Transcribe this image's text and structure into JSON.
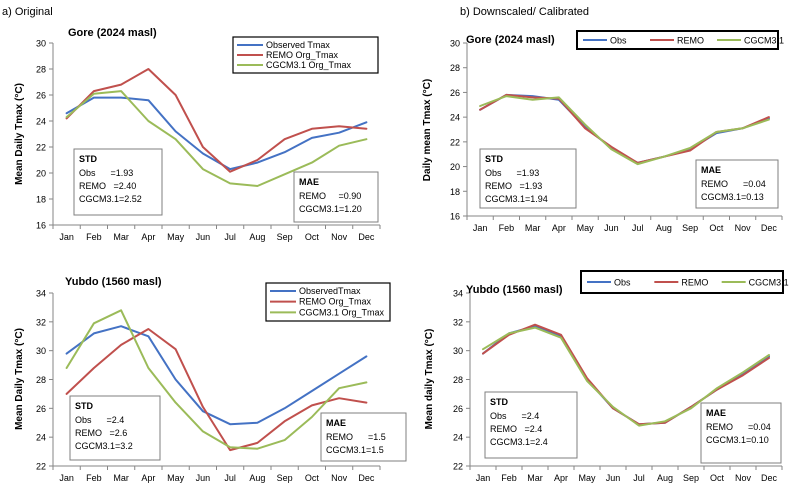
{
  "panel_labels": {
    "left": "a) Original",
    "right": "b) Downscaled/ Calibrated"
  },
  "colors": {
    "obs": "#4472C4",
    "remo": "#C0504D",
    "cgcm": "#9BBB59"
  },
  "chart_data": [
    {
      "type": "line",
      "title": "Gore (2024 masl)",
      "ylabel": "Mean Daily Tmax (°C)",
      "ylim": [
        16,
        30
      ],
      "yticks": [
        16,
        18,
        20,
        22,
        24,
        26,
        28,
        30
      ],
      "categories": [
        "Jan",
        "Feb",
        "Mar",
        "Apr",
        "May",
        "Jun",
        "Jul",
        "Aug",
        "Sep",
        "Oct",
        "Nov",
        "Dec"
      ],
      "legend_position": "top-right",
      "series": [
        {
          "name": "Observed Tmax",
          "color": "#4472C4",
          "values": [
            24.6,
            25.8,
            25.8,
            25.6,
            23.2,
            21.5,
            20.3,
            20.8,
            21.6,
            22.7,
            23.1,
            23.9
          ]
        },
        {
          "name": "REMO Org_Tmax",
          "color": "#C0504D",
          "values": [
            24.2,
            26.3,
            26.8,
            28.0,
            26.0,
            22.0,
            20.1,
            21.0,
            22.6,
            23.4,
            23.6,
            23.4
          ]
        },
        {
          "name": "CGCM3.1 Org_Tmax",
          "color": "#9BBB59",
          "values": [
            24.3,
            26.1,
            26.3,
            24.0,
            22.6,
            20.3,
            19.2,
            19.0,
            19.9,
            20.8,
            22.1,
            22.6
          ]
        }
      ],
      "boxes": [
        {
          "position": "bottom-left",
          "title": "STD",
          "lines": [
            "Obs      =1.93",
            "REMO   =2.40",
            "CGCM3.1=2.52"
          ]
        },
        {
          "position": "bottom-right",
          "title": "MAE",
          "lines": [
            "REMO     =0.90",
            "CGCM3.1=1.20"
          ]
        }
      ]
    },
    {
      "type": "line",
      "title": "Gore (2024 masl)",
      "ylabel": "Daily mean Tmax (°C)",
      "ylim": [
        16,
        30
      ],
      "yticks": [
        16,
        18,
        20,
        22,
        24,
        26,
        28,
        30
      ],
      "categories": [
        "Jan",
        "Feb",
        "Mar",
        "Apr",
        "May",
        "Jun",
        "Jul",
        "Aug",
        "Sep",
        "Oct",
        "Nov",
        "Dec"
      ],
      "legend_position": "top",
      "series": [
        {
          "name": "Obs",
          "color": "#4472C4",
          "values": [
            24.6,
            25.8,
            25.7,
            25.4,
            23.2,
            21.5,
            20.3,
            20.8,
            21.4,
            22.7,
            23.1,
            23.9
          ]
        },
        {
          "name": "REMO",
          "color": "#C0504D",
          "values": [
            24.6,
            25.8,
            25.6,
            25.5,
            23.1,
            21.6,
            20.3,
            20.8,
            21.3,
            22.8,
            23.1,
            24.0
          ]
        },
        {
          "name": "CGCM3.1",
          "color": "#9BBB59",
          "values": [
            24.9,
            25.7,
            25.4,
            25.6,
            23.4,
            21.4,
            20.2,
            20.8,
            21.5,
            22.8,
            23.1,
            23.8
          ]
        }
      ],
      "boxes": [
        {
          "position": "bottom-left",
          "title": "STD",
          "lines": [
            "Obs      =1.93",
            "REMO   =1.93",
            "CGCM3.1=1.94"
          ]
        },
        {
          "position": "bottom-right",
          "title": "MAE",
          "lines": [
            "REMO      =0.04",
            "CGCM3.1=0.13"
          ]
        }
      ]
    },
    {
      "type": "line",
      "title": "Yubdo (1560 masl)",
      "ylabel": "Mean Daily Tmax (°C)",
      "ylim": [
        22,
        34
      ],
      "yticks": [
        22,
        24,
        26,
        28,
        30,
        32,
        34
      ],
      "categories": [
        "Jan",
        "Feb",
        "Mar",
        "Apr",
        "May",
        "Jun",
        "Jul",
        "Aug",
        "Sep",
        "Oct",
        "Nov",
        "Dec"
      ],
      "legend_position": "top-right",
      "series": [
        {
          "name": "ObservedTmax",
          "color": "#4472C4",
          "values": [
            29.8,
            31.2,
            31.7,
            31.0,
            28.0,
            25.8,
            24.9,
            25.0,
            26.0,
            27.2,
            28.4,
            29.6
          ]
        },
        {
          "name": "REMO Org_Tmax",
          "color": "#C0504D",
          "values": [
            27.0,
            28.8,
            30.4,
            31.5,
            30.1,
            26.1,
            23.1,
            23.6,
            25.1,
            26.2,
            26.7,
            26.4
          ]
        },
        {
          "name": "CGCM3.1 Org_Tmax",
          "color": "#9BBB59",
          "values": [
            28.8,
            31.9,
            32.8,
            28.8,
            26.4,
            24.4,
            23.3,
            23.2,
            23.8,
            25.4,
            27.4,
            27.8
          ]
        }
      ],
      "boxes": [
        {
          "position": "bottom-left",
          "title": "STD",
          "lines": [
            "Obs      =2.4",
            "REMO   =2.6",
            "CGCM3.1=3.2"
          ]
        },
        {
          "position": "bottom-right",
          "title": "MAE",
          "lines": [
            "REMO      =1.5",
            "CGCM3.1=1.5"
          ]
        }
      ]
    },
    {
      "type": "line",
      "title": "Yubdo (1560 masl)",
      "ylabel": "Mean daily Tmax (°C)",
      "ylim": [
        22,
        34
      ],
      "yticks": [
        22,
        24,
        26,
        28,
        30,
        32,
        34
      ],
      "categories": [
        "Jan",
        "Feb",
        "Mar",
        "Apr",
        "May",
        "Jun",
        "Jul",
        "Aug",
        "Sep",
        "Oct",
        "Nov",
        "Dec"
      ],
      "legend_position": "top",
      "series": [
        {
          "name": "Obs",
          "color": "#4472C4",
          "values": [
            29.8,
            31.2,
            31.7,
            31.0,
            28.0,
            26.0,
            24.9,
            25.0,
            26.1,
            27.3,
            28.4,
            29.6
          ]
        },
        {
          "name": "REMO",
          "color": "#C0504D",
          "values": [
            29.8,
            31.1,
            31.8,
            31.1,
            28.1,
            26.0,
            24.9,
            25.0,
            26.1,
            27.3,
            28.3,
            29.5
          ]
        },
        {
          "name": "CGCM3.1",
          "color": "#9BBB59",
          "values": [
            30.1,
            31.2,
            31.6,
            30.9,
            27.9,
            26.1,
            24.8,
            25.1,
            26.0,
            27.4,
            28.5,
            29.7
          ]
        }
      ],
      "boxes": [
        {
          "position": "bottom-left",
          "title": "STD",
          "lines": [
            "Obs      =2.4",
            "REMO   =2.4",
            "CGCM3.1=2.4"
          ]
        },
        {
          "position": "bottom-right",
          "title": "MAE",
          "lines": [
            "REMO      =0.04",
            "CGCM3.1=0.10"
          ]
        }
      ]
    }
  ]
}
